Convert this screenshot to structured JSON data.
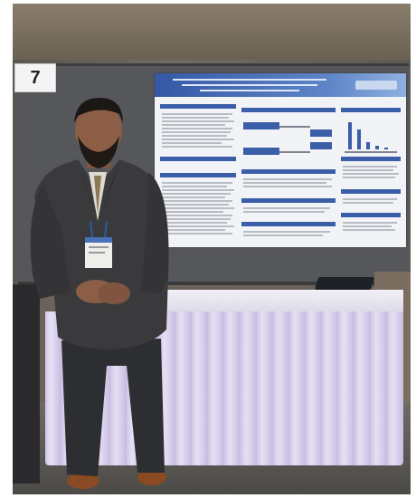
{
  "booth": {
    "number": "7"
  },
  "colors": {
    "poster_blue": "#3b5ea8",
    "table_skirt": "#d7cfec",
    "suit": "#3a3a3c",
    "board_gray": "#56575a"
  }
}
